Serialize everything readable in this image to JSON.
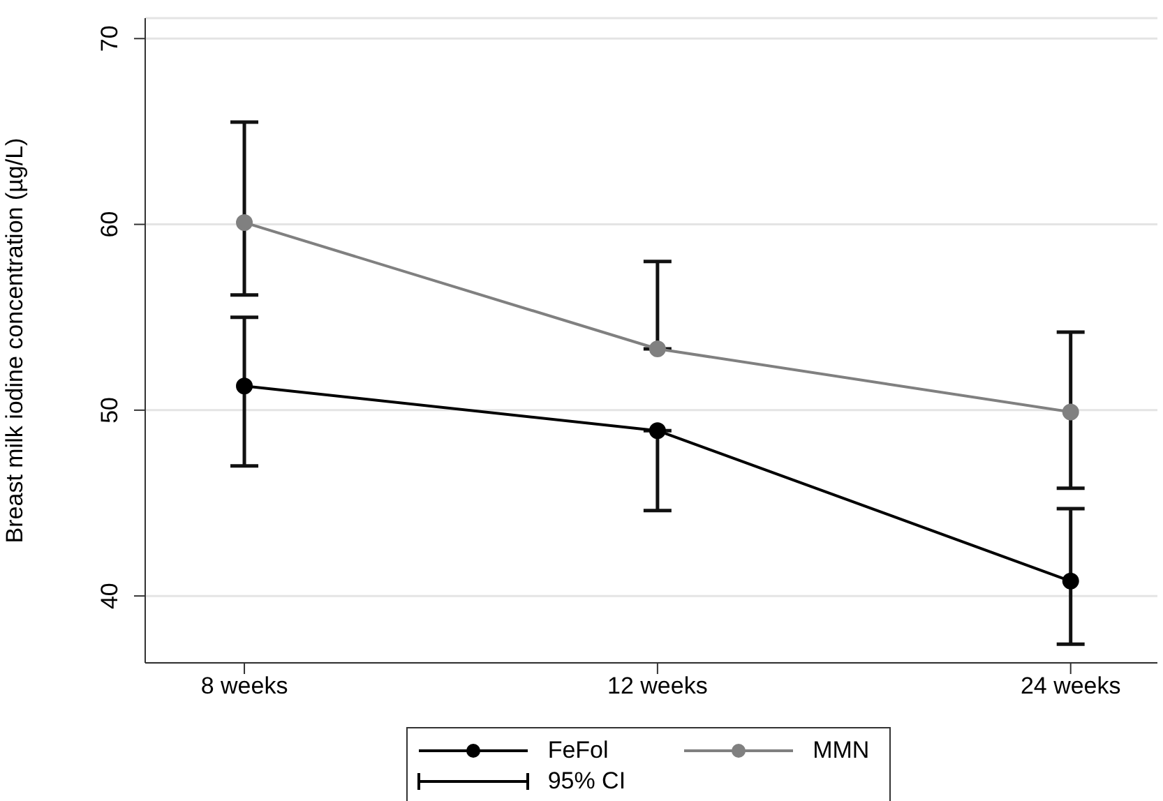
{
  "chart_data": {
    "type": "line",
    "ylabel": "Breast milk iodine concentration (µg/L)",
    "categories": [
      "8 weeks",
      "12 weeks",
      "24 weeks"
    ],
    "series": [
      {
        "name": "FeFol",
        "color": "#000000",
        "values": [
          51.3,
          48.9,
          40.8
        ],
        "errors": [
          [
            47.0,
            55.0
          ],
          [
            44.6,
            48.9
          ],
          [
            37.4,
            44.7
          ]
        ]
      },
      {
        "name": "MMN",
        "color": "#808080",
        "values": [
          60.1,
          53.3,
          49.9
        ],
        "errors": [
          [
            56.2,
            65.5
          ],
          [
            53.3,
            58.0
          ],
          [
            45.8,
            54.2
          ]
        ]
      }
    ],
    "ylim": [
      36.4,
      71.1
    ],
    "yticks": [
      40,
      50,
      60,
      70
    ],
    "grid": "y",
    "legend": "bottom",
    "marker": "circle",
    "line_style": "solid",
    "annotations": [
      "95% CI"
    ]
  }
}
